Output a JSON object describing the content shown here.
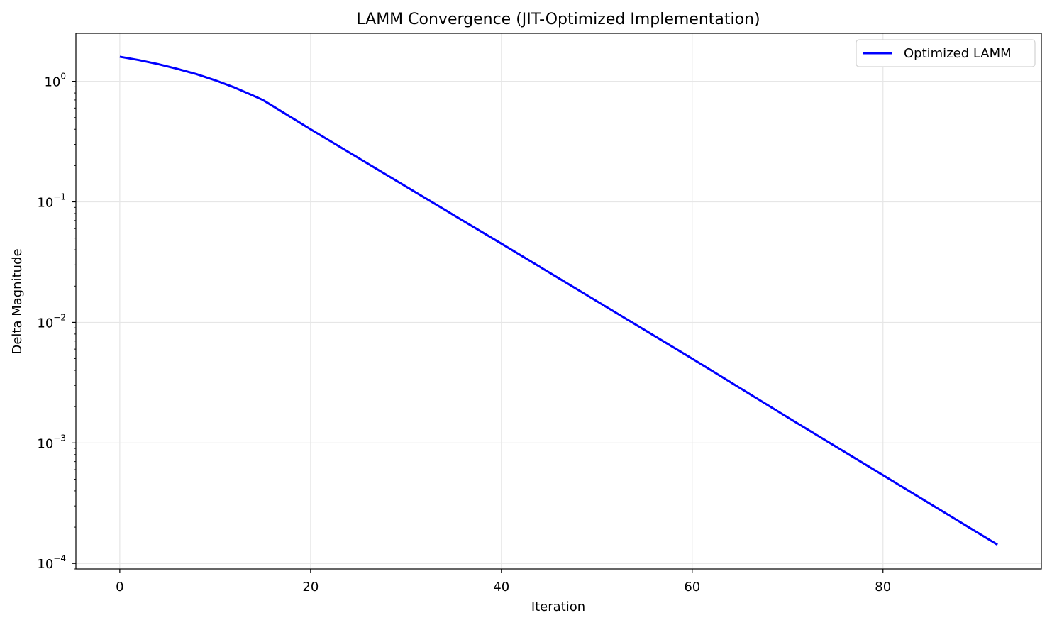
{
  "chart_data": {
    "type": "line",
    "title": "LAMM Convergence (JIT-Optimized Implementation)",
    "xlabel": "Iteration",
    "ylabel": "Delta Magnitude",
    "xlim": [
      -4.6,
      96.6
    ],
    "ylim": [
      9e-05,
      2.5
    ],
    "y_scale": "log",
    "x_ticks": [
      0,
      20,
      40,
      60,
      80
    ],
    "y_ticks": [
      {
        "value": 1,
        "base": "10",
        "exp": "0"
      },
      {
        "value": 0.1,
        "base": "10",
        "exp": "−1"
      },
      {
        "value": 0.01,
        "base": "10",
        "exp": "−2"
      },
      {
        "value": 0.001,
        "base": "10",
        "exp": "−3"
      },
      {
        "value": 0.0001,
        "base": "10",
        "exp": "−4"
      }
    ],
    "grid": true,
    "legend_position": "top-right",
    "series": [
      {
        "name": "Optimized LAMM",
        "color": "#0000ff",
        "x": [
          0,
          2,
          4,
          6,
          8,
          10,
          12,
          14,
          15,
          20,
          30,
          40,
          50,
          60,
          70,
          80,
          92
        ],
        "y": [
          1.6,
          1.5,
          1.39,
          1.27,
          1.15,
          1.02,
          0.89,
          0.76,
          0.7,
          0.4,
          0.134,
          0.045,
          0.015,
          0.005,
          0.00163,
          0.00054,
          0.000143
        ]
      }
    ]
  }
}
